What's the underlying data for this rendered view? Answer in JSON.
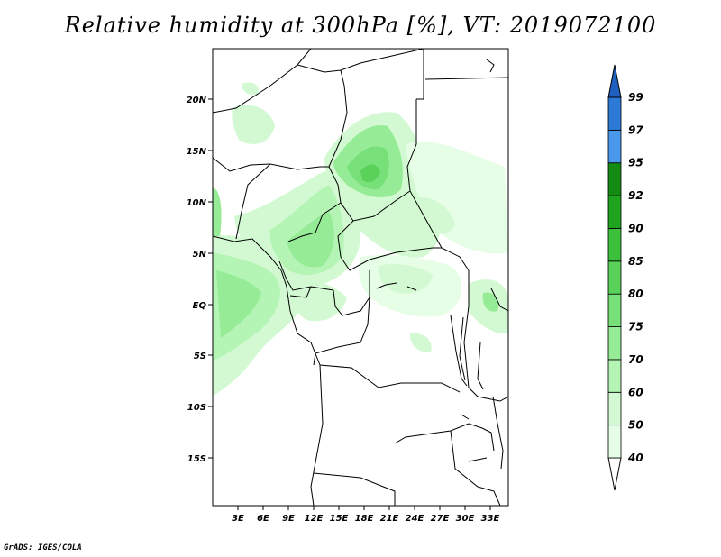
{
  "title": "Relative humidity at 300hPa [%], VT: 2019072100",
  "credit": "GrADS: IGES/COLA",
  "map": {
    "lat_labels": [
      "20N",
      "15N",
      "10N",
      "5N",
      "EQ",
      "5S",
      "10S",
      "15S"
    ],
    "lon_labels": [
      "3E",
      "6E",
      "9E",
      "12E",
      "15E",
      "18E",
      "21E",
      "24E",
      "27E",
      "30E",
      "33E"
    ]
  },
  "colorbar": {
    "levels": [
      "40",
      "50",
      "60",
      "70",
      "75",
      "80",
      "85",
      "90",
      "92",
      "95",
      "97",
      "99"
    ],
    "colors": [
      "#ffffff",
      "#e6fde6",
      "#d2f9d2",
      "#b4f4b4",
      "#96ec96",
      "#78e078",
      "#5ad25a",
      "#3cc03c",
      "#1fa41f",
      "#148c14",
      "#4a98ec",
      "#2c7ad6",
      "#1f5fc0"
    ]
  }
}
